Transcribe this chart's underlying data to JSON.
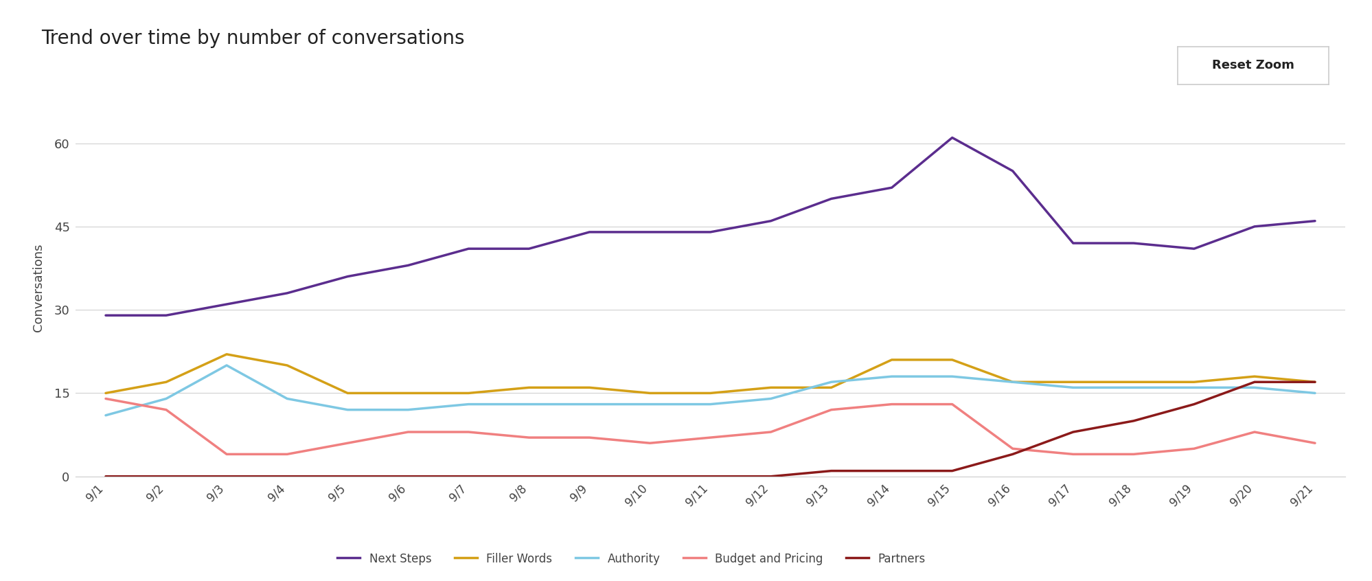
{
  "title": "Trend over time by number of conversations",
  "ylabel": "Conversations",
  "background_color": "#ffffff",
  "plot_bg_color": "#ffffff",
  "x_labels": [
    "9/1",
    "9/2",
    "9/3",
    "9/4",
    "9/5",
    "9/6",
    "9/7",
    "9/8",
    "9/9",
    "9/10",
    "9/11",
    "9/12",
    "9/13",
    "9/14",
    "9/15",
    "9/16",
    "9/17",
    "9/18",
    "9/19",
    "9/20",
    "9/21"
  ],
  "series": [
    {
      "name": "Next Steps",
      "color": "#5b2d8e",
      "values": [
        29,
        29,
        31,
        33,
        36,
        38,
        41,
        41,
        44,
        44,
        44,
        46,
        50,
        52,
        61,
        55,
        42,
        42,
        41,
        45,
        46
      ]
    },
    {
      "name": "Filler Words",
      "color": "#d4a017",
      "values": [
        15,
        17,
        22,
        20,
        15,
        15,
        15,
        16,
        16,
        15,
        15,
        16,
        16,
        21,
        21,
        17,
        17,
        17,
        17,
        18,
        17
      ]
    },
    {
      "name": "Authority",
      "color": "#7ec8e3",
      "values": [
        11,
        14,
        20,
        14,
        12,
        12,
        13,
        13,
        13,
        13,
        13,
        14,
        17,
        18,
        18,
        17,
        16,
        16,
        16,
        16,
        15
      ]
    },
    {
      "name": "Budget and Pricing",
      "color": "#f08080",
      "values": [
        14,
        12,
        4,
        4,
        6,
        8,
        8,
        7,
        7,
        6,
        7,
        8,
        12,
        13,
        13,
        5,
        4,
        4,
        5,
        8,
        6
      ]
    },
    {
      "name": "Partners",
      "color": "#8b1a1a",
      "values": [
        0,
        0,
        0,
        0,
        0,
        0,
        0,
        0,
        0,
        0,
        0,
        0,
        1,
        1,
        1,
        4,
        8,
        10,
        13,
        17,
        17
      ]
    }
  ],
  "yticks": [
    0,
    15,
    30,
    45,
    60
  ],
  "ylim": [
    0,
    68
  ],
  "grid_color": "#d0d0d0",
  "title_fontsize": 20,
  "axis_fontsize": 12,
  "legend_fontsize": 12,
  "line_width": 2.5,
  "reset_zoom_label": "Reset Zoom"
}
